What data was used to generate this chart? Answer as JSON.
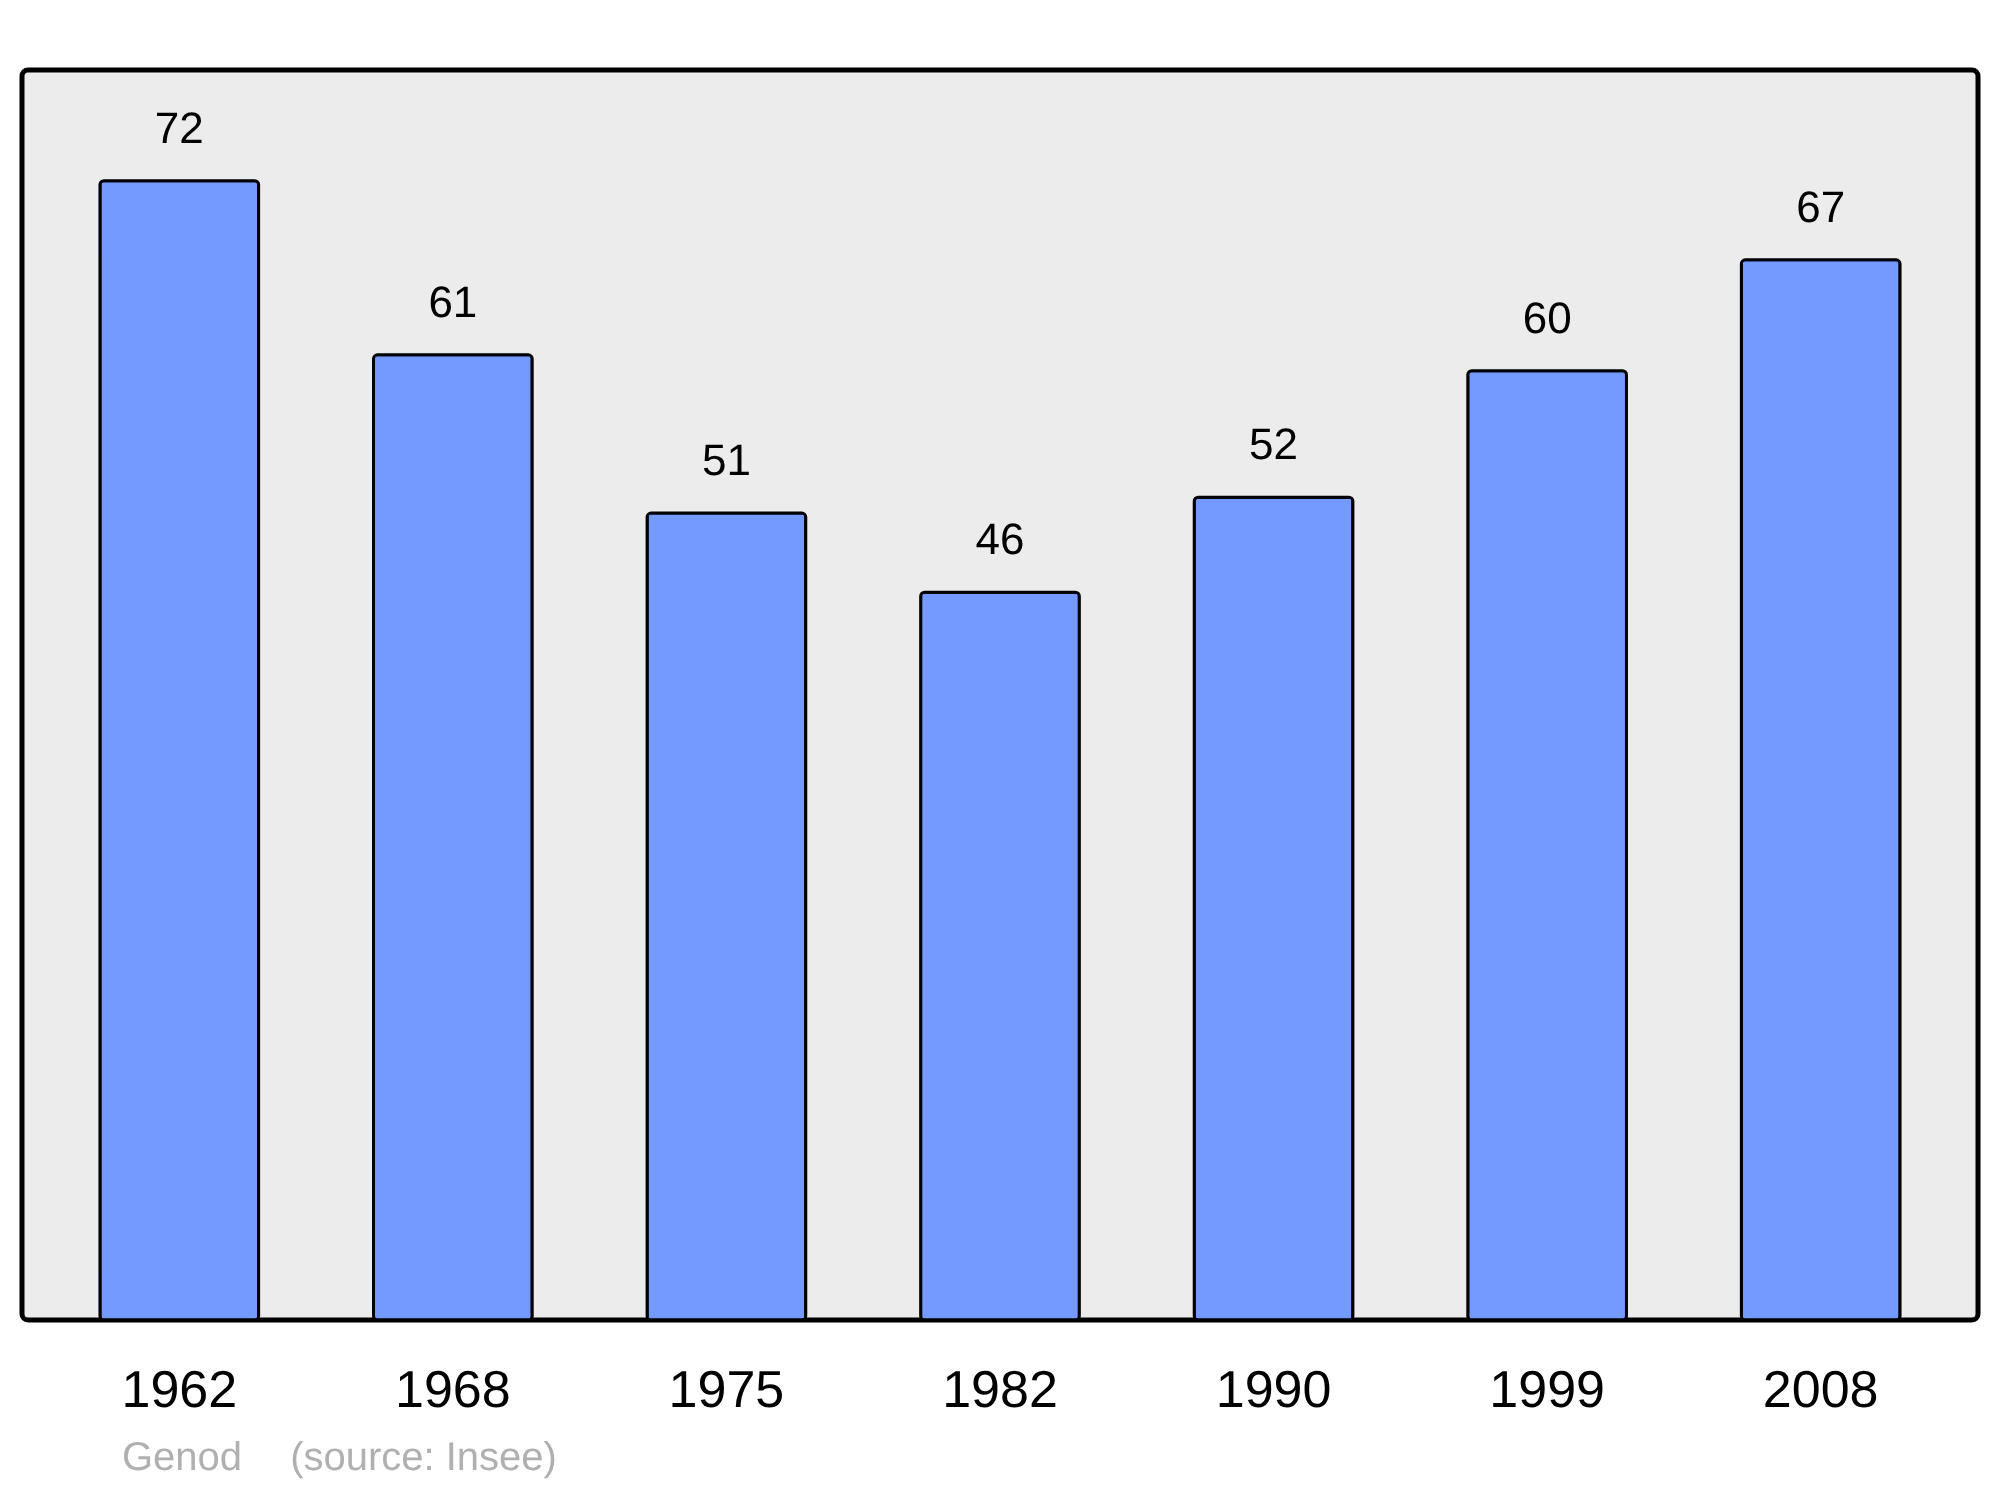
{
  "chart_data": {
    "type": "bar",
    "categories": [
      "1962",
      "1968",
      "1975",
      "1982",
      "1990",
      "1999",
      "2008"
    ],
    "values": [
      72,
      61,
      51,
      46,
      52,
      60,
      67
    ],
    "color": "#7499ff",
    "ylim": [
      0,
      79
    ],
    "data_labels": true,
    "tick_labels": "x",
    "annotations": [
      "Genod",
      "(source: Insee)"
    ]
  }
}
